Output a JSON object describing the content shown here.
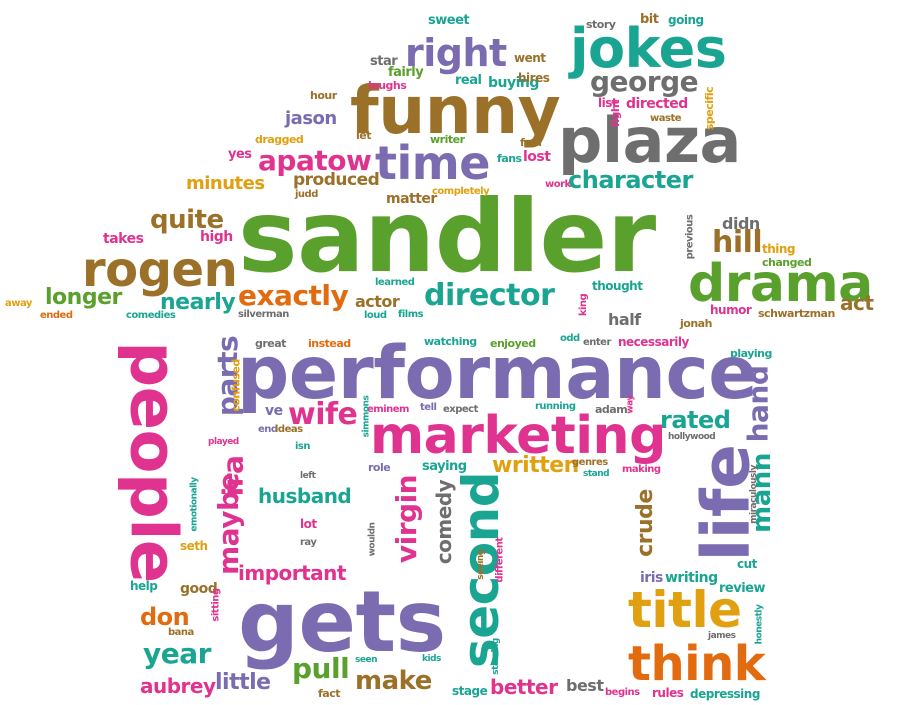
{
  "palette": {
    "green": "#5aa02c",
    "purple": "#7b6bb0",
    "pink": "#e0338f",
    "gray": "#6e6e6e",
    "brown": "#9b7028",
    "orange": "#e26b10",
    "teal": "#1aa593",
    "gold": "#e0a010"
  },
  "words": [
    {
      "text": "sandler",
      "color": "green"
    },
    {
      "text": "performance",
      "color": "purple"
    },
    {
      "text": "gets",
      "color": "purple"
    },
    {
      "text": "funny",
      "color": "brown"
    },
    {
      "text": "plaza",
      "color": "gray"
    },
    {
      "text": "jokes",
      "color": "teal"
    },
    {
      "text": "drama",
      "color": "green"
    },
    {
      "text": "marketing",
      "color": "pink"
    },
    {
      "text": "people",
      "color": "pink"
    },
    {
      "text": "life",
      "color": "purple"
    },
    {
      "text": "second",
      "color": "teal"
    },
    {
      "text": "title",
      "color": "gold"
    },
    {
      "text": "think",
      "color": "orange"
    },
    {
      "text": "rogen",
      "color": "brown"
    },
    {
      "text": "time",
      "color": "purple"
    },
    {
      "text": "director",
      "color": "teal"
    },
    {
      "text": "right",
      "color": "purple"
    },
    {
      "text": "george",
      "color": "gray"
    },
    {
      "text": "apatow",
      "color": "pink"
    },
    {
      "text": "character",
      "color": "teal"
    },
    {
      "text": "exactly",
      "color": "orange"
    },
    {
      "text": "longer",
      "color": "green"
    },
    {
      "text": "nearly",
      "color": "teal"
    },
    {
      "text": "hill",
      "color": "brown"
    },
    {
      "text": "quite",
      "color": "brown"
    },
    {
      "text": "minutes",
      "color": "gold"
    },
    {
      "text": "produced",
      "color": "brown"
    },
    {
      "text": "jason",
      "color": "purple"
    },
    {
      "text": "wife",
      "color": "pink"
    },
    {
      "text": "parts",
      "color": "purple"
    },
    {
      "text": "maybe",
      "color": "pink"
    },
    {
      "text": "ira",
      "color": "pink"
    },
    {
      "text": "virgin",
      "color": "pink"
    },
    {
      "text": "comedy",
      "color": "gray"
    },
    {
      "text": "written",
      "color": "gold"
    },
    {
      "text": "rated",
      "color": "teal"
    },
    {
      "text": "hand",
      "color": "purple"
    },
    {
      "text": "mann",
      "color": "teal"
    },
    {
      "text": "crude",
      "color": "brown"
    },
    {
      "text": "husband",
      "color": "teal"
    },
    {
      "text": "important",
      "color": "pink"
    },
    {
      "text": "don",
      "color": "orange"
    },
    {
      "text": "good",
      "color": "brown"
    },
    {
      "text": "year",
      "color": "teal"
    },
    {
      "text": "pull",
      "color": "green"
    },
    {
      "text": "make",
      "color": "brown"
    },
    {
      "text": "little",
      "color": "purple"
    },
    {
      "text": "aubrey",
      "color": "pink"
    },
    {
      "text": "better",
      "color": "pink"
    },
    {
      "text": "best",
      "color": "gray"
    },
    {
      "text": "half",
      "color": "gray"
    },
    {
      "text": "actor",
      "color": "brown"
    },
    {
      "text": "act",
      "color": "brown"
    },
    {
      "text": "takes",
      "color": "pink"
    },
    {
      "text": "high",
      "color": "pink"
    },
    {
      "text": "matter",
      "color": "brown"
    },
    {
      "text": "lost",
      "color": "pink"
    },
    {
      "text": "buying",
      "color": "teal"
    },
    {
      "text": "fairly",
      "color": "green"
    },
    {
      "text": "real",
      "color": "teal"
    },
    {
      "text": "star",
      "color": "gray"
    },
    {
      "text": "went",
      "color": "brown"
    },
    {
      "text": "hires",
      "color": "brown"
    },
    {
      "text": "directed",
      "color": "pink"
    },
    {
      "text": "list",
      "color": "pink"
    },
    {
      "text": "fight",
      "color": "pink"
    },
    {
      "text": "waste",
      "color": "brown"
    },
    {
      "text": "specific",
      "color": "gold"
    },
    {
      "text": "sweet",
      "color": "teal"
    },
    {
      "text": "story",
      "color": "gray"
    },
    {
      "text": "bit",
      "color": "brown"
    },
    {
      "text": "going",
      "color": "teal"
    },
    {
      "text": "hour",
      "color": "brown"
    },
    {
      "text": "laughs",
      "color": "pink"
    },
    {
      "text": "writer",
      "color": "green"
    },
    {
      "text": "feel",
      "color": "brown"
    },
    {
      "text": "let",
      "color": "brown"
    },
    {
      "text": "dragged",
      "color": "gold"
    },
    {
      "text": "yes",
      "color": "pink"
    },
    {
      "text": "judd",
      "color": "brown"
    },
    {
      "text": "completely",
      "color": "gold"
    },
    {
      "text": "fans",
      "color": "teal"
    },
    {
      "text": "work",
      "color": "pink"
    },
    {
      "text": "didn",
      "color": "gray"
    },
    {
      "text": "previous",
      "color": "gray"
    },
    {
      "text": "thing",
      "color": "gold"
    },
    {
      "text": "changed",
      "color": "green"
    },
    {
      "text": "thought",
      "color": "teal"
    },
    {
      "text": "king",
      "color": "pink"
    },
    {
      "text": "jonah",
      "color": "brown"
    },
    {
      "text": "humor",
      "color": "pink"
    },
    {
      "text": "schwartzman",
      "color": "brown"
    },
    {
      "text": "learned",
      "color": "teal"
    },
    {
      "text": "away",
      "color": "gold"
    },
    {
      "text": "ended",
      "color": "orange"
    },
    {
      "text": "comedies",
      "color": "teal"
    },
    {
      "text": "silverman",
      "color": "gray"
    },
    {
      "text": "loud",
      "color": "teal"
    },
    {
      "text": "films",
      "color": "teal"
    },
    {
      "text": "great",
      "color": "gray"
    },
    {
      "text": "instead",
      "color": "orange"
    },
    {
      "text": "watching",
      "color": "teal"
    },
    {
      "text": "enjoyed",
      "color": "green"
    },
    {
      "text": "odd",
      "color": "teal"
    },
    {
      "text": "enter",
      "color": "gray"
    },
    {
      "text": "necessarily",
      "color": "pink"
    },
    {
      "text": "playing",
      "color": "teal"
    },
    {
      "text": "confused",
      "color": "gold"
    },
    {
      "text": "ve",
      "color": "purple"
    },
    {
      "text": "eminem",
      "color": "pink"
    },
    {
      "text": "tell",
      "color": "purple"
    },
    {
      "text": "expect",
      "color": "gray"
    },
    {
      "text": "running",
      "color": "teal"
    },
    {
      "text": "adam",
      "color": "gray"
    },
    {
      "text": "way",
      "color": "pink"
    },
    {
      "text": "end",
      "color": "purple"
    },
    {
      "text": "ideas",
      "color": "brown"
    },
    {
      "text": "simmons",
      "color": "teal"
    },
    {
      "text": "hollywood",
      "color": "gray"
    },
    {
      "text": "played",
      "color": "pink"
    },
    {
      "text": "isn",
      "color": "teal"
    },
    {
      "text": "left",
      "color": "gray"
    },
    {
      "text": "role",
      "color": "purple"
    },
    {
      "text": "saying",
      "color": "teal"
    },
    {
      "text": "genres",
      "color": "brown"
    },
    {
      "text": "stand",
      "color": "teal"
    },
    {
      "text": "making",
      "color": "pink"
    },
    {
      "text": "miraculously",
      "color": "gray"
    },
    {
      "text": "emotionally",
      "color": "teal"
    },
    {
      "text": "seth",
      "color": "gold"
    },
    {
      "text": "lot",
      "color": "pink"
    },
    {
      "text": "ray",
      "color": "gray"
    },
    {
      "text": "wouldn",
      "color": "gray"
    },
    {
      "text": "seeing",
      "color": "brown"
    },
    {
      "text": "different",
      "color": "pink"
    },
    {
      "text": "iris",
      "color": "purple"
    },
    {
      "text": "writing",
      "color": "teal"
    },
    {
      "text": "cut",
      "color": "teal"
    },
    {
      "text": "review",
      "color": "teal"
    },
    {
      "text": "james",
      "color": "gray"
    },
    {
      "text": "honestly",
      "color": "teal"
    },
    {
      "text": "help",
      "color": "teal"
    },
    {
      "text": "sitting",
      "color": "pink"
    },
    {
      "text": "bana",
      "color": "brown"
    },
    {
      "text": "seen",
      "color": "teal"
    },
    {
      "text": "kids",
      "color": "teal"
    },
    {
      "text": "starring",
      "color": "teal"
    },
    {
      "text": "fact",
      "color": "brown"
    },
    {
      "text": "stage",
      "color": "teal"
    },
    {
      "text": "begins",
      "color": "pink"
    },
    {
      "text": "rules",
      "color": "pink"
    },
    {
      "text": "depressing",
      "color": "teal"
    }
  ]
}
